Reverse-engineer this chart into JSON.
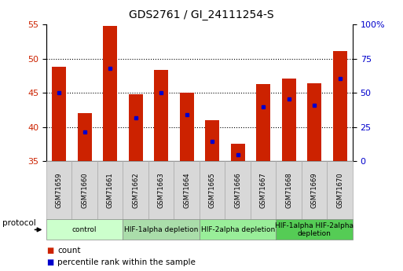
{
  "title": "GDS2761 / GI_24111254-S",
  "samples": [
    "GSM71659",
    "GSM71660",
    "GSM71661",
    "GSM71662",
    "GSM71663",
    "GSM71664",
    "GSM71665",
    "GSM71666",
    "GSM71667",
    "GSM71668",
    "GSM71669",
    "GSM71670"
  ],
  "bar_heights": [
    48.8,
    42.0,
    54.8,
    44.8,
    48.4,
    45.0,
    41.0,
    37.5,
    46.3,
    47.1,
    46.4,
    51.1
  ],
  "bar_base": 35,
  "blue_dot_y": [
    45.0,
    39.3,
    48.6,
    41.3,
    45.0,
    41.8,
    37.9,
    35.9,
    43.0,
    44.1,
    43.2,
    47.1
  ],
  "ylim": [
    35,
    55
  ],
  "yticks_left": [
    35,
    40,
    45,
    50,
    55
  ],
  "bar_color": "#cc2200",
  "dot_color": "#0000cc",
  "protocol_groups": [
    {
      "label": "control",
      "start": 0,
      "end": 2,
      "color": "#ccffcc"
    },
    {
      "label": "HIF-1alpha depletion",
      "start": 3,
      "end": 5,
      "color": "#aaddaa"
    },
    {
      "label": "HIF-2alpha depletion",
      "start": 6,
      "end": 8,
      "color": "#99ee99"
    },
    {
      "label": "HIF-1alpha HIF-2alpha\ndepletion",
      "start": 9,
      "end": 11,
      "color": "#55cc55"
    }
  ],
  "tick_label_color_left": "#cc2200",
  "tick_label_color_right": "#0000cc",
  "protocol_label": "protocol",
  "right_tick_labels": [
    "0",
    "25",
    "50",
    "75",
    "100%"
  ],
  "right_tick_positions": [
    35,
    40,
    45,
    50,
    55
  ],
  "sample_box_color": "#d8d8d8",
  "sample_box_edge": "#aaaaaa"
}
